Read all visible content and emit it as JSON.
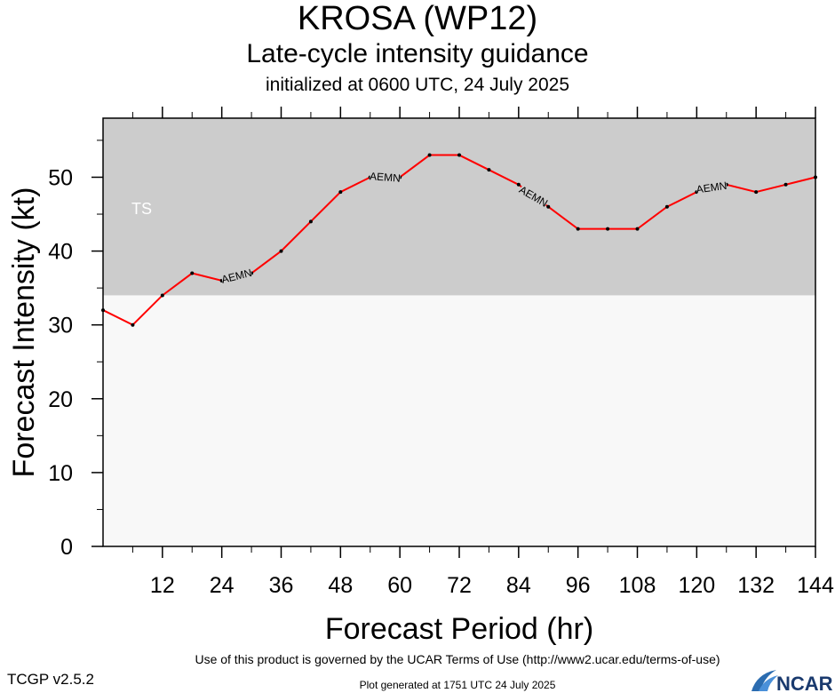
{
  "header": {
    "title": "KROSA (WP12)",
    "subtitle": "Late-cycle intensity guidance",
    "init_line": "initialized at 0600 UTC, 24 July 2025"
  },
  "chart_data": {
    "type": "line",
    "title": "KROSA (WP12)",
    "subtitle": "Late-cycle intensity guidance",
    "xlabel": "Forecast Period (hr)",
    "ylabel": "Forecast Intensity (kt)",
    "xlim": [
      0,
      144
    ],
    "ylim": [
      0,
      58
    ],
    "xticks": [
      12,
      24,
      36,
      48,
      60,
      72,
      84,
      96,
      108,
      120,
      132,
      144
    ],
    "yticks": [
      0,
      10,
      20,
      30,
      40,
      50
    ],
    "bands": [
      {
        "label": "TS",
        "from": 34,
        "to": 58,
        "color": "#cccccc"
      },
      {
        "label": "",
        "from": 0,
        "to": 34,
        "color": "#f8f8f8"
      }
    ],
    "series": [
      {
        "name": "AEMN",
        "color": "#ff0000",
        "x": [
          0,
          6,
          12,
          18,
          24,
          30,
          36,
          42,
          48,
          54,
          60,
          66,
          72,
          78,
          84,
          90,
          96,
          102,
          108,
          114,
          120,
          126,
          132,
          138,
          144
        ],
        "y": [
          32,
          30,
          34,
          37,
          36,
          37,
          40,
          44,
          48,
          50,
          50,
          53,
          53,
          51,
          49,
          46,
          43,
          43,
          43,
          46,
          48,
          49,
          48,
          49,
          50
        ]
      }
    ],
    "series_labels": [
      {
        "text": "AEMN",
        "x": 27,
        "y": 36.6,
        "angle": -14
      },
      {
        "text": "AEMN",
        "x": 57,
        "y": 50,
        "angle": 4
      },
      {
        "text": "AEMN",
        "x": 87,
        "y": 47.4,
        "angle": 30
      },
      {
        "text": "AEMN",
        "x": 123,
        "y": 48.6,
        "angle": -8
      }
    ]
  },
  "footer": {
    "terms": "Use of this product is governed by the UCAR Terms of Use (http://www2.ucar.edu/terms-of-use)",
    "version": "TCGP v2.5.2",
    "generated": "Plot generated at 1751 UTC   24 July 2025",
    "logo_text": "NCAR"
  }
}
